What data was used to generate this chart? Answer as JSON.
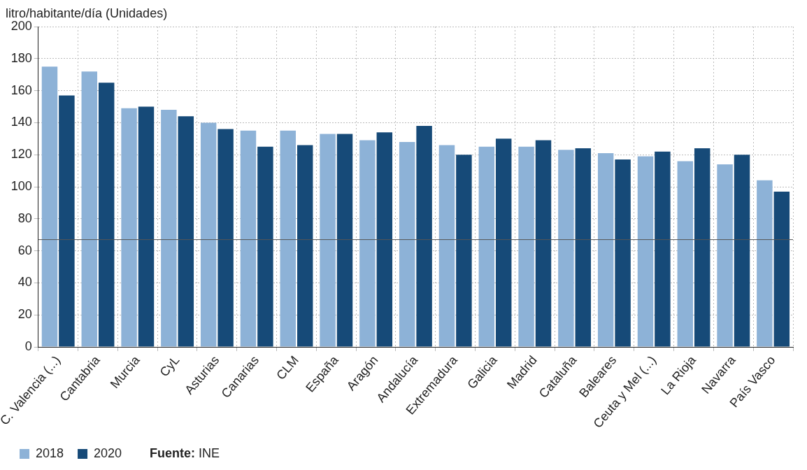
{
  "chart_data": {
    "type": "bar",
    "ylabel": "litro/habitante/día (Unidades)",
    "categories": [
      "C. Valencia (...)",
      "Cantabria",
      "Murcia",
      "CyL",
      "Asturias",
      "Canarias",
      "CLM",
      "España",
      "Aragón",
      "Andalucía",
      "Extremadura",
      "Galicia",
      "Madrid",
      "Cataluña",
      "Baleares",
      "Ceuta y Mel (...)",
      "La Rioja",
      "Navarra",
      "País Vasco"
    ],
    "series": [
      {
        "name": "2018",
        "color": "#8db2d7",
        "values": [
          175,
          172,
          149,
          148,
          140,
          135,
          135,
          133,
          129,
          128,
          126,
          125,
          125,
          123,
          121,
          119,
          116,
          114,
          104
        ]
      },
      {
        "name": "2020",
        "color": "#164a78",
        "values": [
          157,
          165,
          150,
          144,
          136,
          125,
          126,
          133,
          134,
          138,
          120,
          130,
          129,
          124,
          117,
          122,
          124,
          120,
          97
        ]
      }
    ],
    "ylim": [
      0,
      200
    ],
    "yticks": [
      0,
      20,
      40,
      60,
      80,
      100,
      120,
      140,
      160,
      180,
      200
    ],
    "grid": true,
    "legend": "bottom",
    "ref_lines": [
      {
        "axis": "y",
        "value": 67,
        "color": "#555555"
      }
    ],
    "annotations": [
      "Fuente: INE"
    ]
  }
}
